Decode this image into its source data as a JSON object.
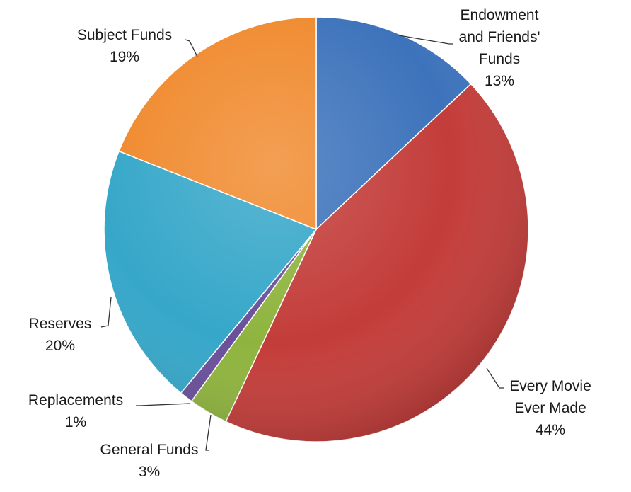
{
  "chart_data": {
    "type": "pie",
    "title": "",
    "slices": [
      {
        "lines": [
          "Endowment",
          "and Friends'",
          "Funds"
        ],
        "percent_label": "13%",
        "value": 13,
        "color": "#3d73bb"
      },
      {
        "lines": [
          "Every Movie",
          "Ever Made"
        ],
        "percent_label": "44%",
        "value": 44,
        "color": "#c33d3a"
      },
      {
        "lines": [
          "General Funds"
        ],
        "percent_label": "3%",
        "value": 3,
        "color": "#8fb43e"
      },
      {
        "lines": [
          "Replacements"
        ],
        "percent_label": "1%",
        "value": 1,
        "color": "#6a4f9a"
      },
      {
        "lines": [
          "Reserves"
        ],
        "percent_label": "20%",
        "value": 20,
        "color": "#36a7c9"
      },
      {
        "lines": [
          "Subject Funds"
        ],
        "percent_label": "19%",
        "value": 19,
        "color": "#f08a2e"
      }
    ]
  }
}
